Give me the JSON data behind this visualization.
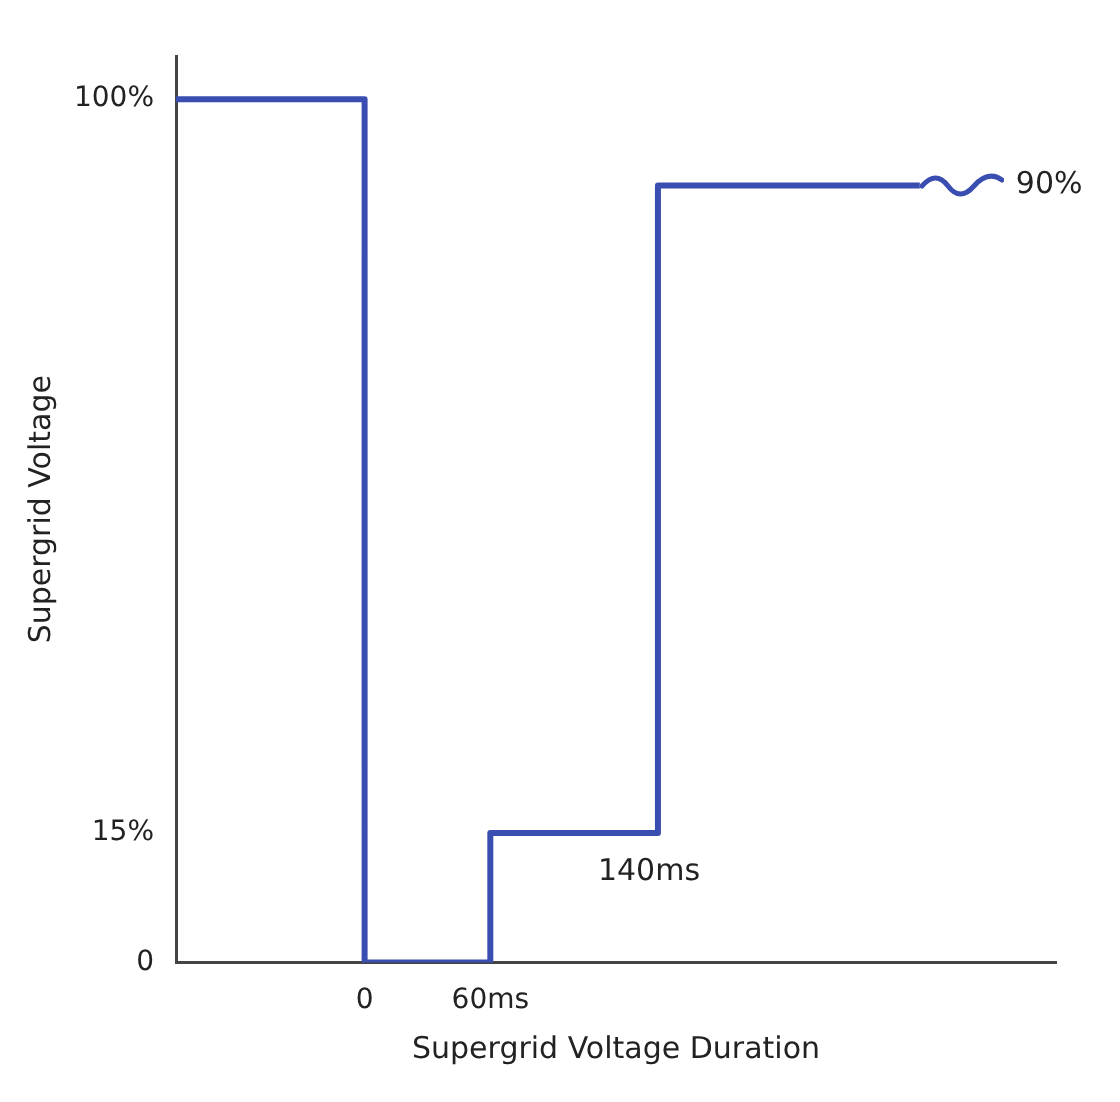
{
  "chart_data": {
    "type": "step",
    "xlabel": "Supergrid Voltage Duration",
    "ylabel": "Supergrid Voltage",
    "x": [
      -90,
      0,
      60,
      140,
      265
    ],
    "series": [
      {
        "color": "#3a4db0",
        "values": [
          100,
          0,
          15,
          90,
          90
        ]
      }
    ],
    "xlim": [
      -90,
      330
    ],
    "xticks": [
      {
        "value": 0,
        "label": "0"
      },
      {
        "value": 60,
        "label": "60ms"
      }
    ],
    "ylim": [
      0,
      105
    ],
    "yticks": [
      {
        "value": 0,
        "label": "0"
      },
      {
        "value": 15,
        "label": "15%"
      },
      {
        "value": 100,
        "label": "100%"
      }
    ],
    "annotations": [
      {
        "text": "140ms",
        "x": 140,
        "y": 15
      },
      {
        "text": "90%",
        "x": 265,
        "y": 90
      }
    ],
    "grid": false,
    "legend": false,
    "marker": "none",
    "line_style": "solid"
  }
}
